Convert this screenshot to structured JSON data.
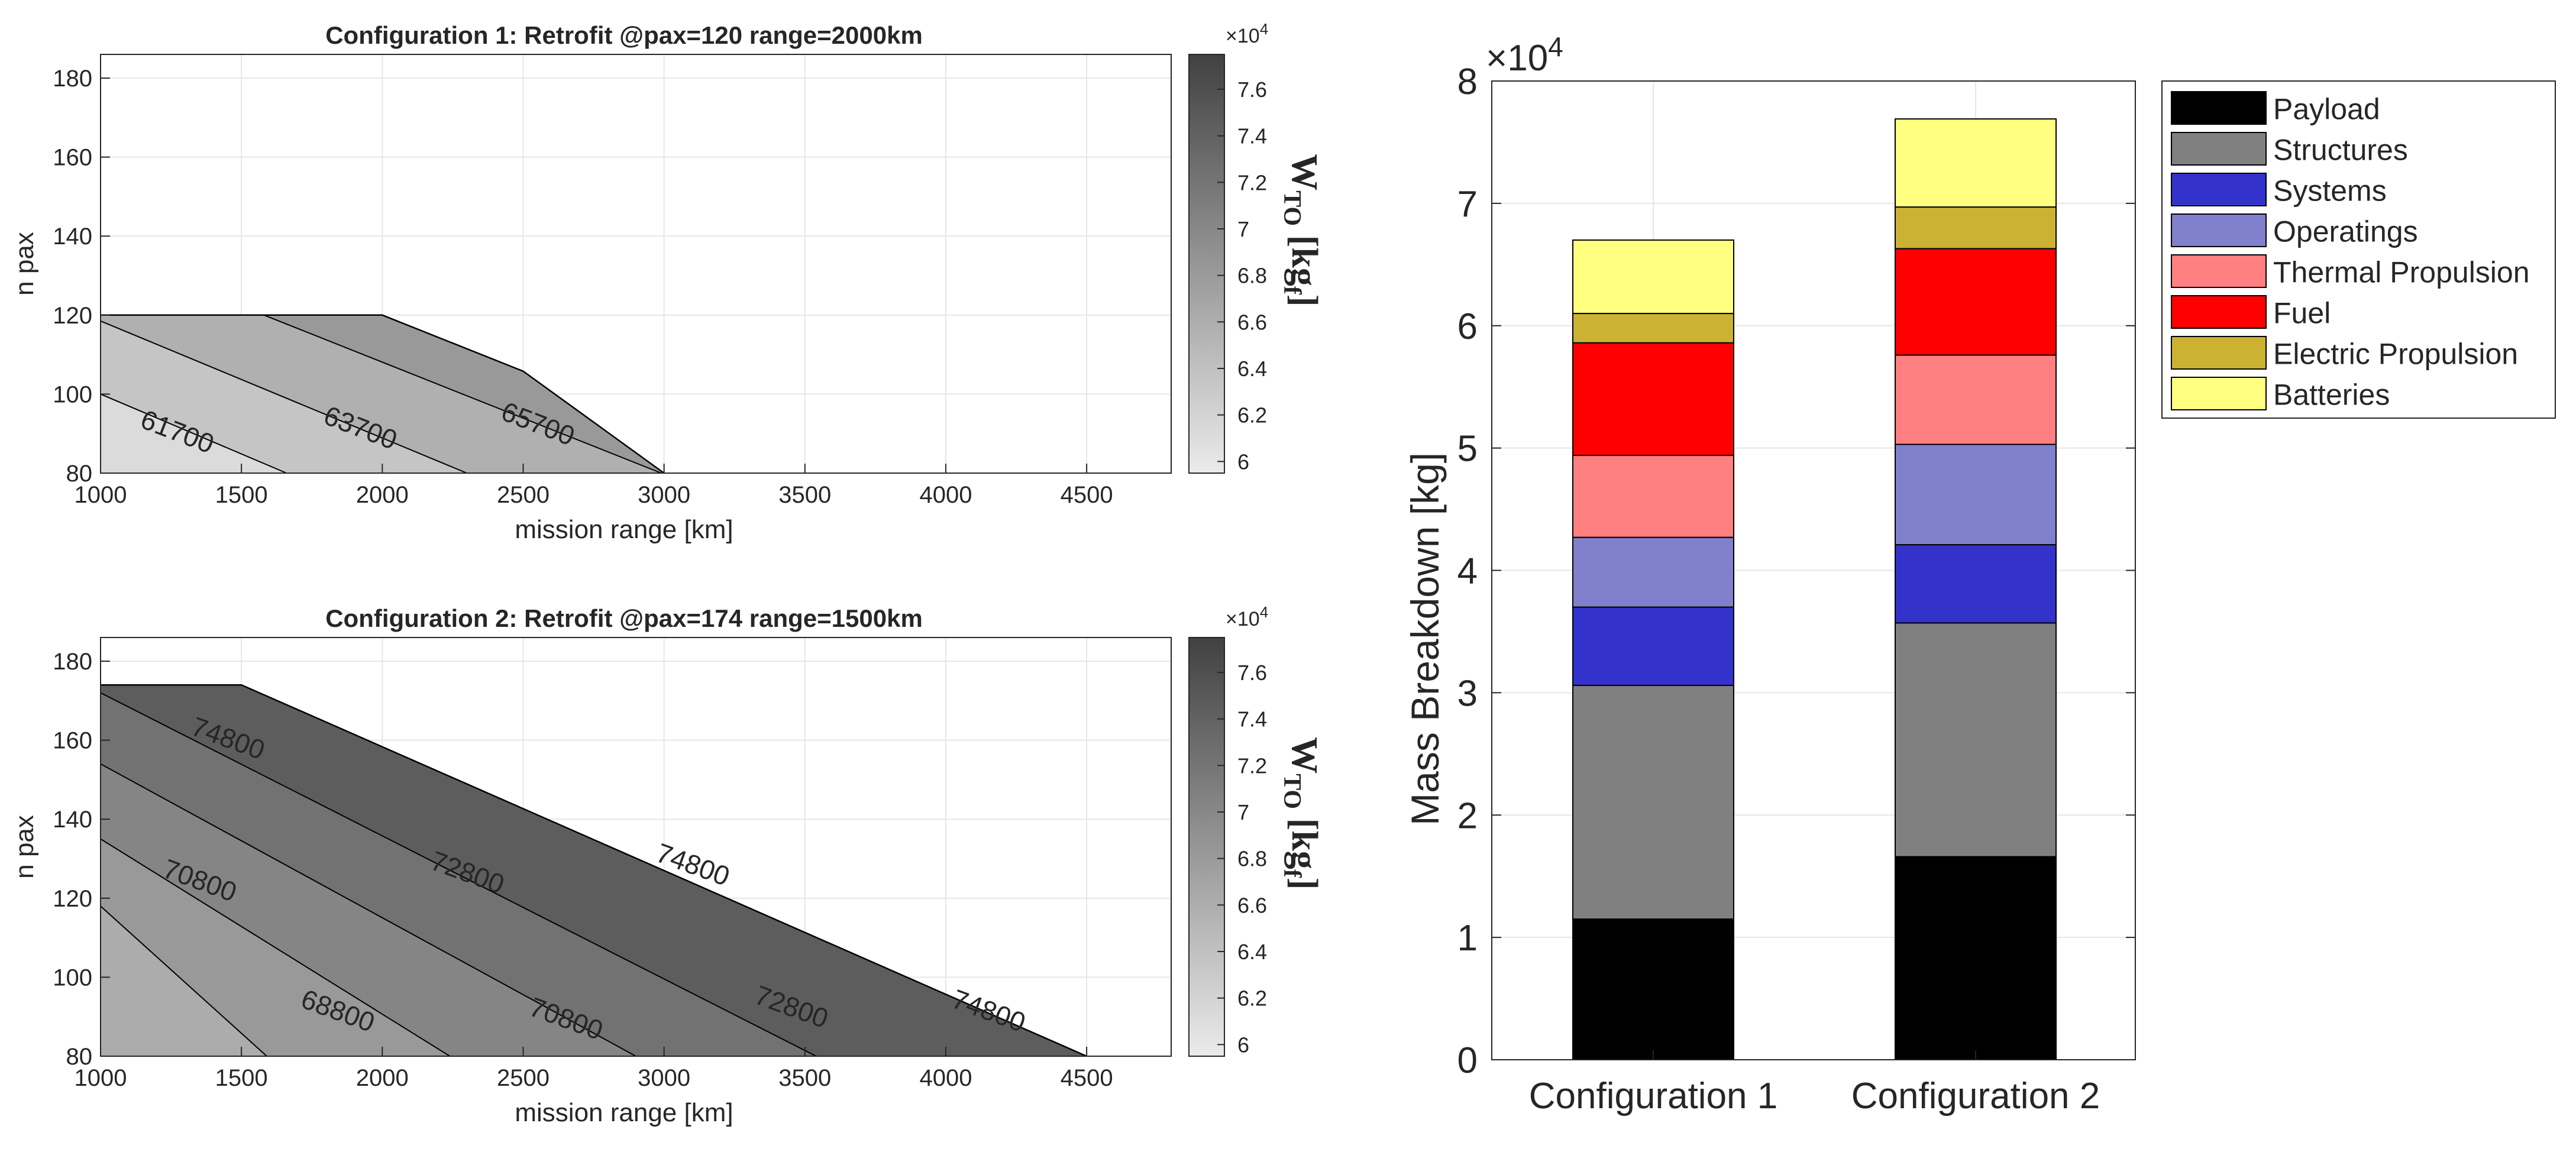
{
  "chart_data": [
    {
      "type": "contour",
      "id": "config1",
      "title": "Configuration 1: Retrofit @pax=120 range=2000km",
      "xlabel": "mission range [km]",
      "ylabel": "n pax",
      "xlim": [
        1000,
        4800
      ],
      "ylim": [
        80,
        186
      ],
      "xticks": [
        1000,
        1500,
        2000,
        2500,
        3000,
        3500,
        4000,
        4500
      ],
      "yticks": [
        80,
        100,
        120,
        140,
        160,
        180
      ],
      "feasible_boundary": [
        [
          1000,
          120
        ],
        [
          2000,
          120
        ],
        [
          2500,
          105.8
        ],
        [
          3000,
          80
        ]
      ],
      "contour_levels": [
        {
          "label": "61700",
          "label_at": [
            1270,
            90
          ]
        },
        {
          "label": "63700",
          "label_at": [
            1920,
            91
          ]
        },
        {
          "label": "65700",
          "label_at": [
            2550,
            92
          ]
        }
      ],
      "contour_lines": [
        [
          [
            1000,
            100
          ],
          [
            1660,
            80
          ]
        ],
        [
          [
            1000,
            118.5
          ],
          [
            2300,
            80
          ]
        ],
        [
          [
            1580,
            120
          ],
          [
            2990,
            80
          ]
        ]
      ],
      "colorbar": {
        "label": "W_TO [kg_f]",
        "label_main": "W",
        "label_sub": "TO",
        "label_rest": "[kg",
        "label_sub2": "f",
        "label_end": "]",
        "multiplier": "×10",
        "multiplier_exp": "4",
        "range": [
          5.95,
          7.75
        ],
        "ticks": [
          6,
          6.2,
          6.4,
          6.6,
          6.8,
          7,
          7.2,
          7.4,
          7.6
        ],
        "tick_labels": [
          "6",
          "6.2",
          "6.4",
          "6.6",
          "6.8",
          "7",
          "7.2",
          "7.4",
          "7.6"
        ]
      }
    },
    {
      "type": "contour",
      "id": "config2",
      "title": "Configuration 2: Retrofit @pax=174 range=1500km",
      "xlabel": "mission range [km]",
      "ylabel": "n pax",
      "xlim": [
        1000,
        4800
      ],
      "ylim": [
        80,
        186
      ],
      "xticks": [
        1000,
        1500,
        2000,
        2500,
        3000,
        3500,
        4000,
        4500
      ],
      "yticks": [
        80,
        100,
        120,
        140,
        160,
        180
      ],
      "feasible_boundary": [
        [
          1000,
          174
        ],
        [
          1500,
          174
        ],
        [
          4500,
          80
        ]
      ],
      "contour_levels": [
        {
          "label": "74800",
          "label_at": [
            1450,
            160
          ]
        },
        {
          "label": "70800",
          "label_at": [
            1350,
            124
          ]
        },
        {
          "label": "72800",
          "label_at": [
            2300,
            126
          ]
        },
        {
          "label": "74800",
          "label_at": [
            3100,
            128
          ]
        },
        {
          "label": "68800",
          "label_at": [
            1840,
            91
          ]
        },
        {
          "label": "70800",
          "label_at": [
            2650,
            89
          ]
        },
        {
          "label": "72800",
          "label_at": [
            3450,
            92
          ]
        },
        {
          "label": "74800",
          "label_at": [
            4150,
            91
          ]
        }
      ],
      "contour_lines": [
        [
          [
            1000,
            118
          ],
          [
            1590,
            80
          ]
        ],
        [
          [
            1000,
            135
          ],
          [
            2240,
            80
          ]
        ],
        [
          [
            1000,
            154
          ],
          [
            2900,
            80
          ]
        ],
        [
          [
            1000,
            172
          ],
          [
            3540,
            80
          ]
        ],
        [
          [
            1500,
            174
          ],
          [
            4500,
            80
          ]
        ]
      ],
      "colorbar": {
        "label": "W_TO [kg_f]",
        "label_main": "W",
        "label_sub": "TO",
        "label_rest": "[kg",
        "label_sub2": "f",
        "label_end": "]",
        "multiplier": "×10",
        "multiplier_exp": "4",
        "range": [
          5.95,
          7.75
        ],
        "ticks": [
          6,
          6.2,
          6.4,
          6.6,
          6.8,
          7,
          7.2,
          7.4,
          7.6
        ],
        "tick_labels": [
          "6",
          "6.2",
          "6.4",
          "6.6",
          "6.8",
          "7",
          "7.2",
          "7.4",
          "7.6"
        ]
      }
    },
    {
      "type": "bar",
      "stacked": true,
      "id": "mass_breakdown",
      "ylabel": "Mass Breakdown [kg]",
      "y_multiplier": "×10",
      "y_multiplier_exp": "4",
      "ylim": [
        0,
        80000
      ],
      "yticks": [
        0,
        10000,
        20000,
        30000,
        40000,
        50000,
        60000,
        70000,
        80000
      ],
      "ytick_labels": [
        "0",
        "1",
        "2",
        "3",
        "4",
        "5",
        "6",
        "7",
        "8"
      ],
      "categories": [
        "Configuration 1",
        "Configuration 2"
      ],
      "legend_position": "top-right outside",
      "series": [
        {
          "name": "Payload",
          "color": "#000000",
          "values": [
            11500,
            16600
          ]
        },
        {
          "name": "Structures",
          "color": "#808080",
          "values": [
            19100,
            19100
          ]
        },
        {
          "name": "Systems",
          "color": "#3333cc",
          "values": [
            6400,
            6400
          ]
        },
        {
          "name": "Operatings",
          "color": "#8080cc",
          "values": [
            5700,
            8200
          ]
        },
        {
          "name": "Thermal Propulsion",
          "color": "#ff8080",
          "values": [
            6700,
            7300
          ]
        },
        {
          "name": "Fuel",
          "color": "#ff0000",
          "values": [
            9200,
            8700
          ]
        },
        {
          "name": "Electric Propulsion",
          "color": "#ccb233",
          "values": [
            2400,
            3400
          ]
        },
        {
          "name": "Batteries",
          "color": "#ffff80",
          "values": [
            6000,
            7200
          ]
        }
      ]
    }
  ]
}
